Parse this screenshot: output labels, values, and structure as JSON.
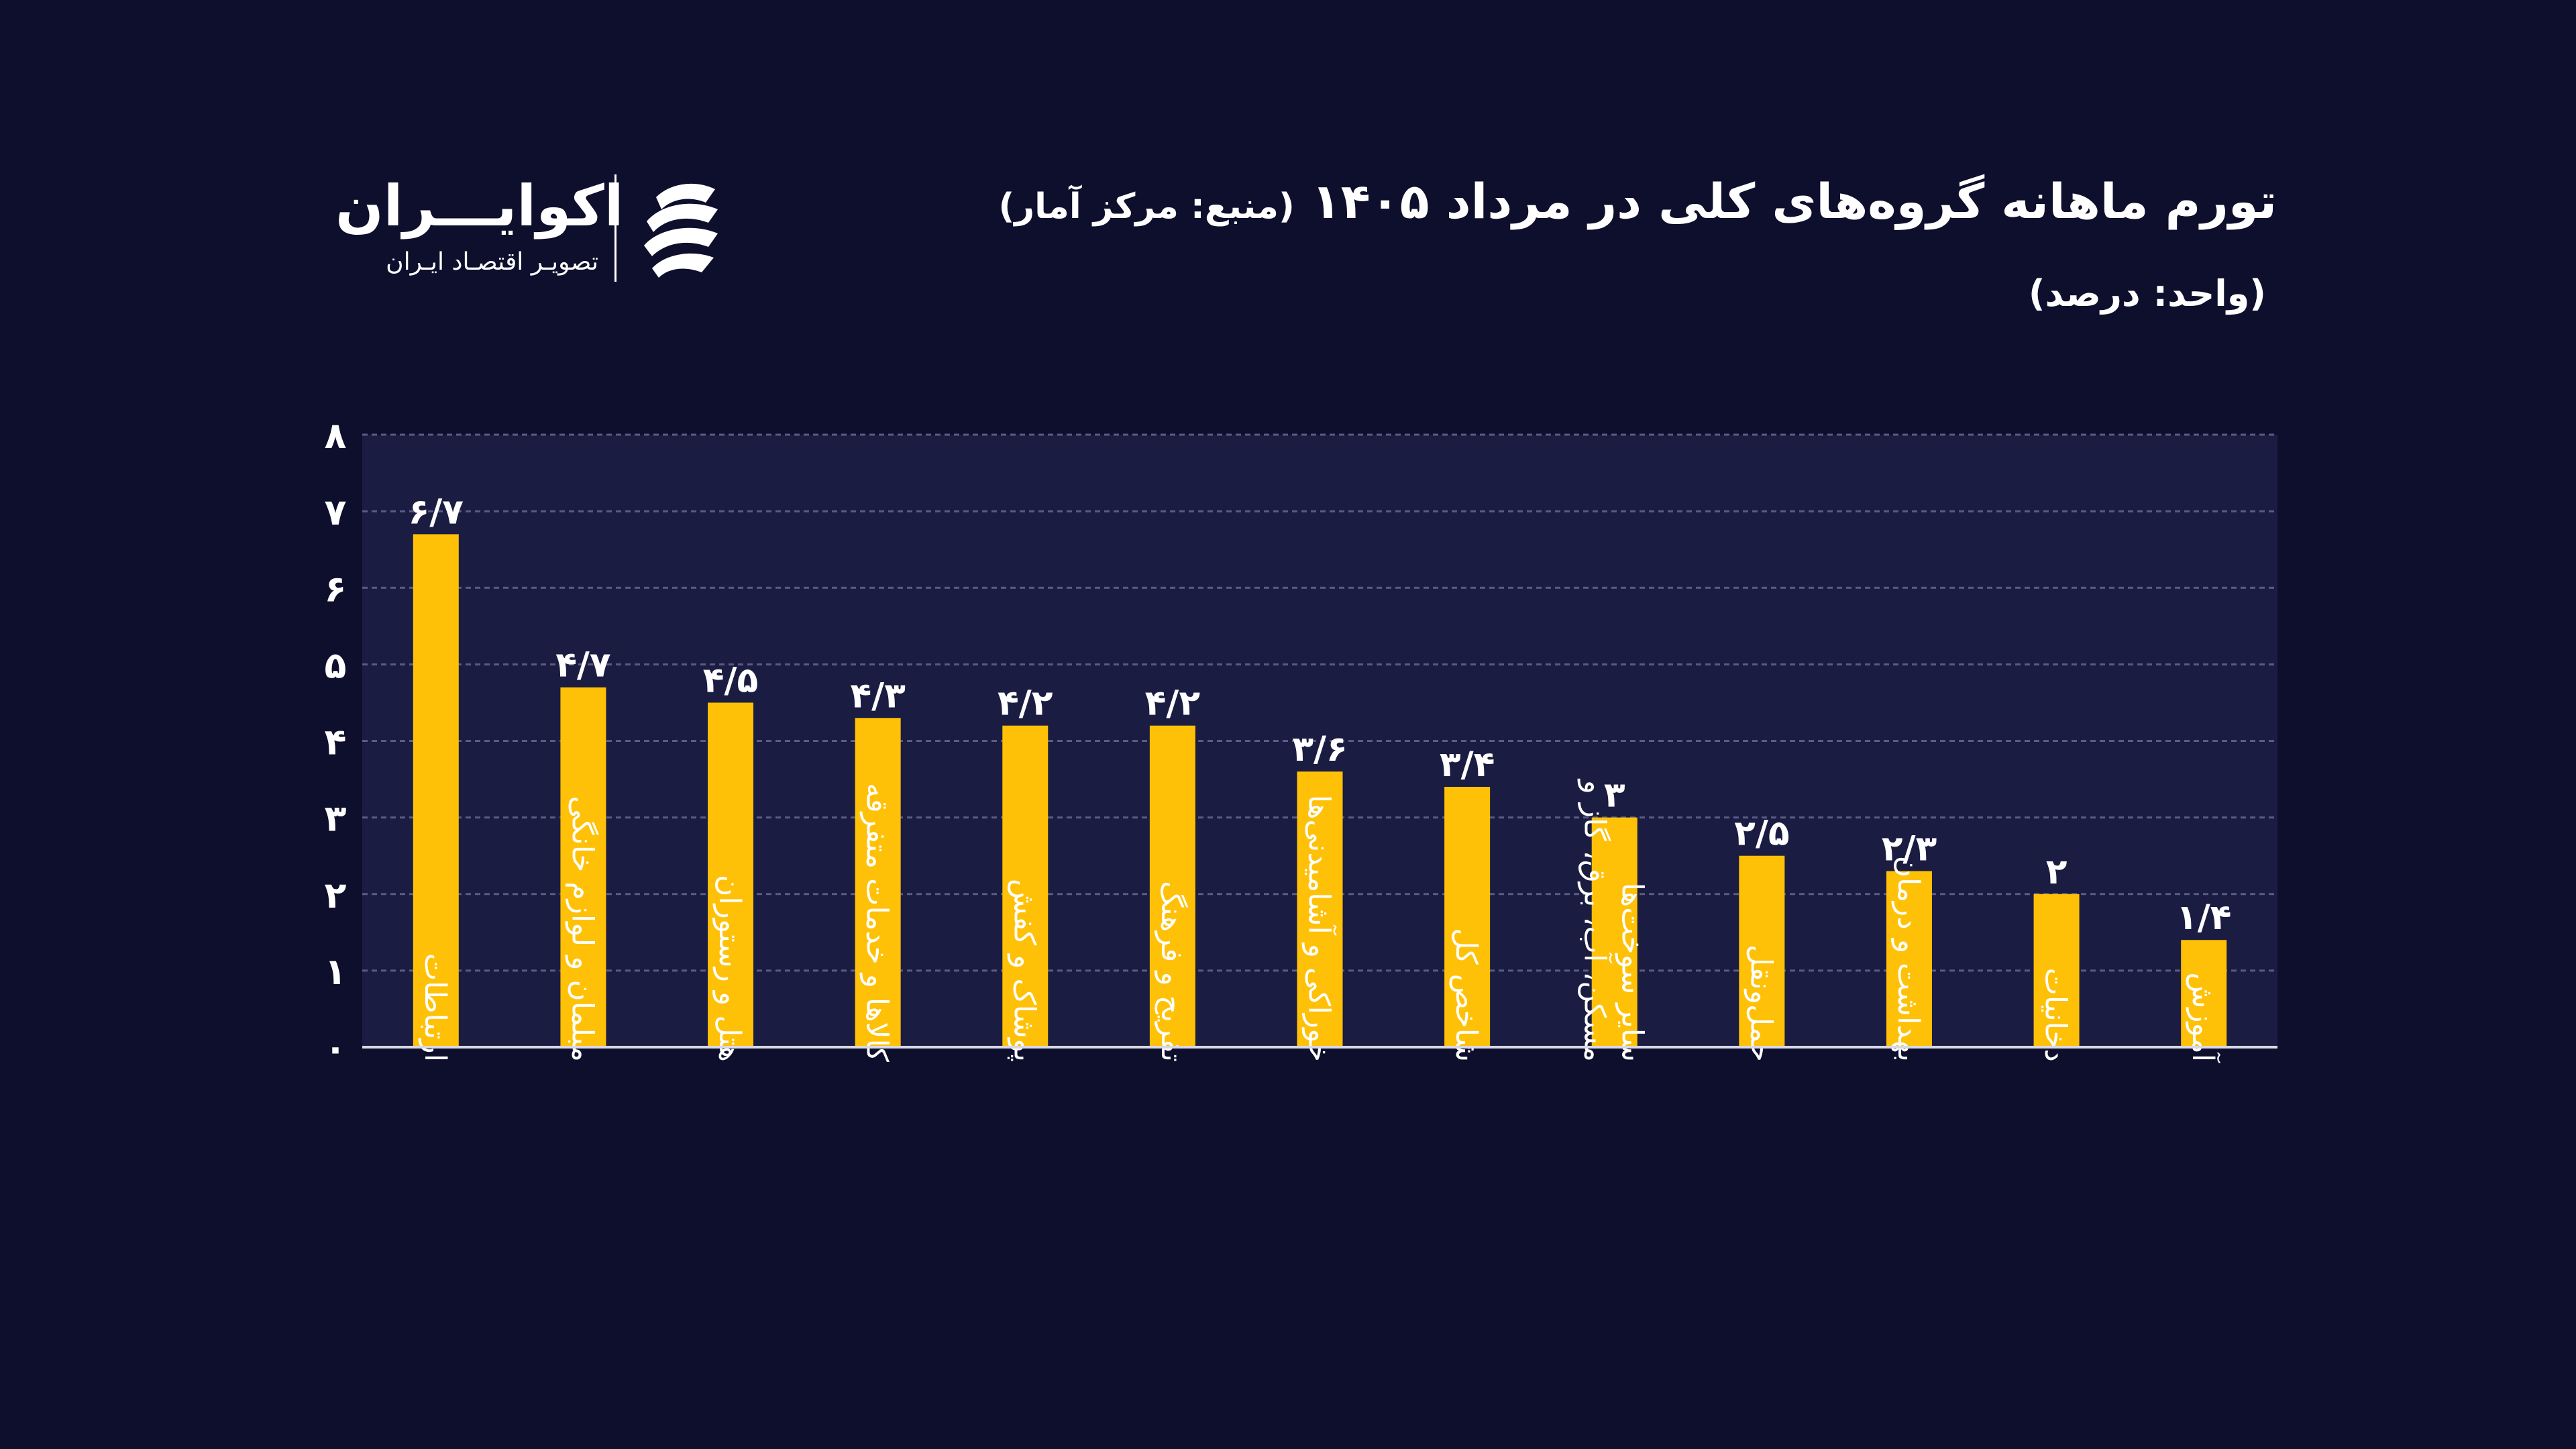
{
  "header": {
    "title": "تورم ماهانه گروه‌های کلی در مرداد ۱۴۰۵",
    "source": "(منبع: مرکز آمار)",
    "unit": "(واحد: درصد)"
  },
  "logo": {
    "name": "اکوایـــران",
    "tagline": "تصویـر اقتصـاد ایـران"
  },
  "colors": {
    "background": "#0e0f2d",
    "plot_background": "#1b1c42",
    "bar": "#ffc107",
    "text": "#ffffff",
    "grid": "#5a5c86"
  },
  "chart_data": {
    "type": "bar",
    "orientation": "vertical",
    "categories": [
      "ارتباطات",
      "مبلمان و لوازم خانگی",
      "هتل و رستوران",
      "کالاها و خدمات متفرقه",
      "پوشاک و کفش",
      "تفریح و فرهنگ",
      "خوراکی و آشامیدنی‌ها",
      "شاخص کل",
      "مسکن، آب، برق، گاز و سایر سوخت‌ها",
      "حمل‌ونقل",
      "بهداشت و درمان",
      "دخانیات",
      "آموزش"
    ],
    "values": [
      6.7,
      4.7,
      4.5,
      4.3,
      4.2,
      4.2,
      3.6,
      3.4,
      3,
      2.5,
      2.3,
      2,
      1.4
    ],
    "value_labels": [
      "۶/۷",
      "۴/۷",
      "۴/۵",
      "۴/۳",
      "۴/۲",
      "۴/۲",
      "۳/۶",
      "۳/۴",
      "۳",
      "۲/۵",
      "۲/۳",
      "۲",
      "۱/۴"
    ],
    "y_ticks": [
      0,
      1,
      2,
      3,
      4,
      5,
      6,
      7,
      8
    ],
    "y_tick_labels": [
      "۰",
      "۱",
      "۲",
      "۳",
      "۴",
      "۵",
      "۶",
      "۷",
      "۸"
    ],
    "ylim": [
      0,
      8
    ],
    "grid": true,
    "grid_style": "dashed-horizontal",
    "legend": false
  }
}
